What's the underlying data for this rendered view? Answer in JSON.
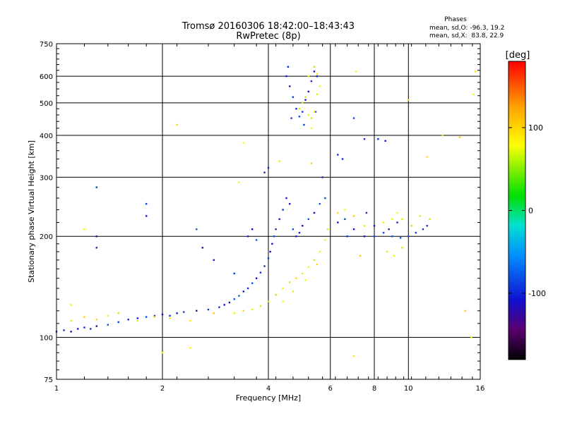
{
  "chart_data": {
    "type": "scatter",
    "title": "Tromsø 20160306 18:42:00–18:43:43",
    "subtitle": "RwPretec (8p)",
    "xlabel": "Frequency [MHz]",
    "ylabel": "Stationary phase Virtual Height [km]",
    "x_scale": "log",
    "y_scale": "log",
    "xlim": [
      1,
      16
    ],
    "ylim": [
      75,
      750
    ],
    "x_ticks": [
      "1",
      "2",
      "4",
      "6",
      "8",
      "10",
      "16"
    ],
    "x_tick_values": [
      1,
      2,
      4,
      6,
      8,
      10,
      16
    ],
    "y_ticks": [
      "75",
      "100",
      "200",
      "300",
      "400",
      "500",
      "600",
      "750"
    ],
    "y_tick_values": [
      75,
      100,
      200,
      300,
      400,
      500,
      600,
      750
    ],
    "grid": true,
    "stats": {
      "heading": "Phases",
      "line1": "mean, sd,O: -96.3, 19.2",
      "line2": "mean, sd,X:  83.8, 22.9"
    },
    "colorbar": {
      "label": "[deg]",
      "range": [
        -180,
        180
      ],
      "ticks": [
        "100",
        "0",
        "-100"
      ],
      "tick_values": [
        100,
        0,
        -100
      ],
      "colormap": "rainbow"
    },
    "series": [
      {
        "mode": "O",
        "phase_mean": -96.3,
        "phase_sd": 19.2,
        "points": [
          [
            1.0,
            104
          ],
          [
            1.05,
            105
          ],
          [
            1.1,
            104
          ],
          [
            1.15,
            106
          ],
          [
            1.2,
            107
          ],
          [
            1.25,
            106
          ],
          [
            1.3,
            108
          ],
          [
            1.4,
            109
          ],
          [
            1.5,
            111
          ],
          [
            1.6,
            113
          ],
          [
            1.7,
            114
          ],
          [
            1.8,
            115
          ],
          [
            1.9,
            116
          ],
          [
            2.0,
            117
          ],
          [
            2.1,
            116
          ],
          [
            2.2,
            118
          ],
          [
            2.3,
            119
          ],
          [
            2.5,
            120
          ],
          [
            2.7,
            121
          ],
          [
            2.9,
            123
          ],
          [
            3.0,
            125
          ],
          [
            3.1,
            127
          ],
          [
            3.2,
            130
          ],
          [
            3.3,
            133
          ],
          [
            3.4,
            137
          ],
          [
            3.5,
            140
          ],
          [
            3.6,
            145
          ],
          [
            3.7,
            150
          ],
          [
            3.8,
            156
          ],
          [
            3.9,
            163
          ],
          [
            4.0,
            172
          ],
          [
            4.05,
            180
          ],
          [
            4.1,
            190
          ],
          [
            4.15,
            200
          ],
          [
            4.2,
            210
          ],
          [
            4.3,
            225
          ],
          [
            4.4,
            240
          ],
          [
            4.5,
            260
          ],
          [
            4.6,
            250
          ],
          [
            4.7,
            210
          ],
          [
            4.8,
            200
          ],
          [
            4.9,
            205
          ],
          [
            5.0,
            215
          ],
          [
            5.2,
            225
          ],
          [
            5.4,
            235
          ],
          [
            5.6,
            250
          ],
          [
            4.5,
            600
          ],
          [
            4.6,
            560
          ],
          [
            4.7,
            520
          ],
          [
            4.8,
            480
          ],
          [
            4.9,
            455
          ],
          [
            5.0,
            470
          ],
          [
            5.1,
            510
          ],
          [
            5.2,
            540
          ],
          [
            5.3,
            580
          ],
          [
            5.4,
            620
          ],
          [
            5.5,
            600
          ],
          [
            4.55,
            640
          ],
          [
            4.65,
            450
          ],
          [
            5.05,
            430
          ],
          [
            5.45,
            470
          ],
          [
            3.9,
            310
          ],
          [
            4.0,
            320
          ],
          [
            6.3,
            350
          ],
          [
            6.5,
            340
          ],
          [
            7.0,
            450
          ],
          [
            7.5,
            390
          ],
          [
            8.2,
            390
          ],
          [
            8.6,
            385
          ],
          [
            6.3,
            220
          ],
          [
            6.6,
            225
          ],
          [
            7.0,
            210
          ],
          [
            7.5,
            200
          ],
          [
            8.0,
            200
          ],
          [
            8.5,
            205
          ],
          [
            9.0,
            200
          ],
          [
            9.5,
            198
          ],
          [
            10.0,
            200
          ],
          [
            10.5,
            205
          ],
          [
            11.0,
            210
          ],
          [
            11.3,
            215
          ],
          [
            8.0,
            215
          ],
          [
            8.8,
            210
          ],
          [
            9.3,
            220
          ],
          [
            1.3,
            200
          ],
          [
            1.3,
            185
          ],
          [
            1.3,
            280
          ],
          [
            1.8,
            250
          ],
          [
            1.8,
            230
          ],
          [
            2.5,
            210
          ],
          [
            2.6,
            185
          ],
          [
            2.8,
            170
          ],
          [
            3.2,
            155
          ],
          [
            3.5,
            200
          ],
          [
            3.6,
            210
          ],
          [
            3.7,
            195
          ],
          [
            5.7,
            300
          ],
          [
            5.8,
            260
          ],
          [
            6.7,
            200
          ],
          [
            7.6,
            235
          ]
        ]
      },
      {
        "mode": "X",
        "phase_mean": 83.8,
        "phase_sd": 22.9,
        "points": [
          [
            1.1,
            112
          ],
          [
            1.2,
            115
          ],
          [
            1.3,
            113
          ],
          [
            1.4,
            116
          ],
          [
            1.5,
            118
          ],
          [
            1.7,
            112
          ],
          [
            1.9,
            115
          ],
          [
            2.1,
            114
          ],
          [
            2.4,
            112
          ],
          [
            2.8,
            118
          ],
          [
            3.2,
            118
          ],
          [
            3.4,
            120
          ],
          [
            3.6,
            121
          ],
          [
            3.8,
            124
          ],
          [
            4.0,
            128
          ],
          [
            4.2,
            134
          ],
          [
            4.4,
            140
          ],
          [
            4.6,
            146
          ],
          [
            4.8,
            150
          ],
          [
            5.0,
            155
          ],
          [
            5.2,
            162
          ],
          [
            5.4,
            170
          ],
          [
            5.6,
            180
          ],
          [
            5.8,
            195
          ],
          [
            5.9,
            210
          ],
          [
            4.4,
            128
          ],
          [
            4.7,
            137
          ],
          [
            5.1,
            148
          ],
          [
            5.5,
            165
          ],
          [
            4.9,
            480
          ],
          [
            5.0,
            500
          ],
          [
            5.1,
            520
          ],
          [
            5.2,
            460
          ],
          [
            5.3,
            450
          ],
          [
            5.4,
            470
          ],
          [
            5.5,
            530
          ],
          [
            5.6,
            560
          ],
          [
            5.2,
            600
          ],
          [
            5.4,
            640
          ],
          [
            5.5,
            610
          ],
          [
            5.3,
            420
          ],
          [
            6.3,
            235
          ],
          [
            6.6,
            240
          ],
          [
            7.0,
            230
          ],
          [
            7.5,
            215
          ],
          [
            8.5,
            220
          ],
          [
            9.0,
            225
          ],
          [
            9.3,
            235
          ],
          [
            9.6,
            225
          ],
          [
            10.2,
            215
          ],
          [
            10.8,
            230
          ],
          [
            11.5,
            225
          ],
          [
            8.7,
            180
          ],
          [
            9.1,
            175
          ],
          [
            9.6,
            185
          ],
          [
            1.1,
            125
          ],
          [
            1.2,
            210
          ],
          [
            2.0,
            90
          ],
          [
            2.4,
            93
          ],
          [
            2.2,
            430
          ],
          [
            3.3,
            290
          ],
          [
            3.4,
            380
          ],
          [
            4.3,
            335
          ],
          [
            5.3,
            330
          ],
          [
            7.0,
            88
          ],
          [
            7.1,
            620
          ],
          [
            7.3,
            175
          ],
          [
            10.0,
            510
          ],
          [
            12.5,
            400
          ],
          [
            14.0,
            395
          ],
          [
            14.5,
            120
          ],
          [
            15.1,
            100
          ],
          [
            15.3,
            530
          ],
          [
            15.5,
            620
          ],
          [
            11.3,
            345
          ]
        ]
      }
    ]
  }
}
